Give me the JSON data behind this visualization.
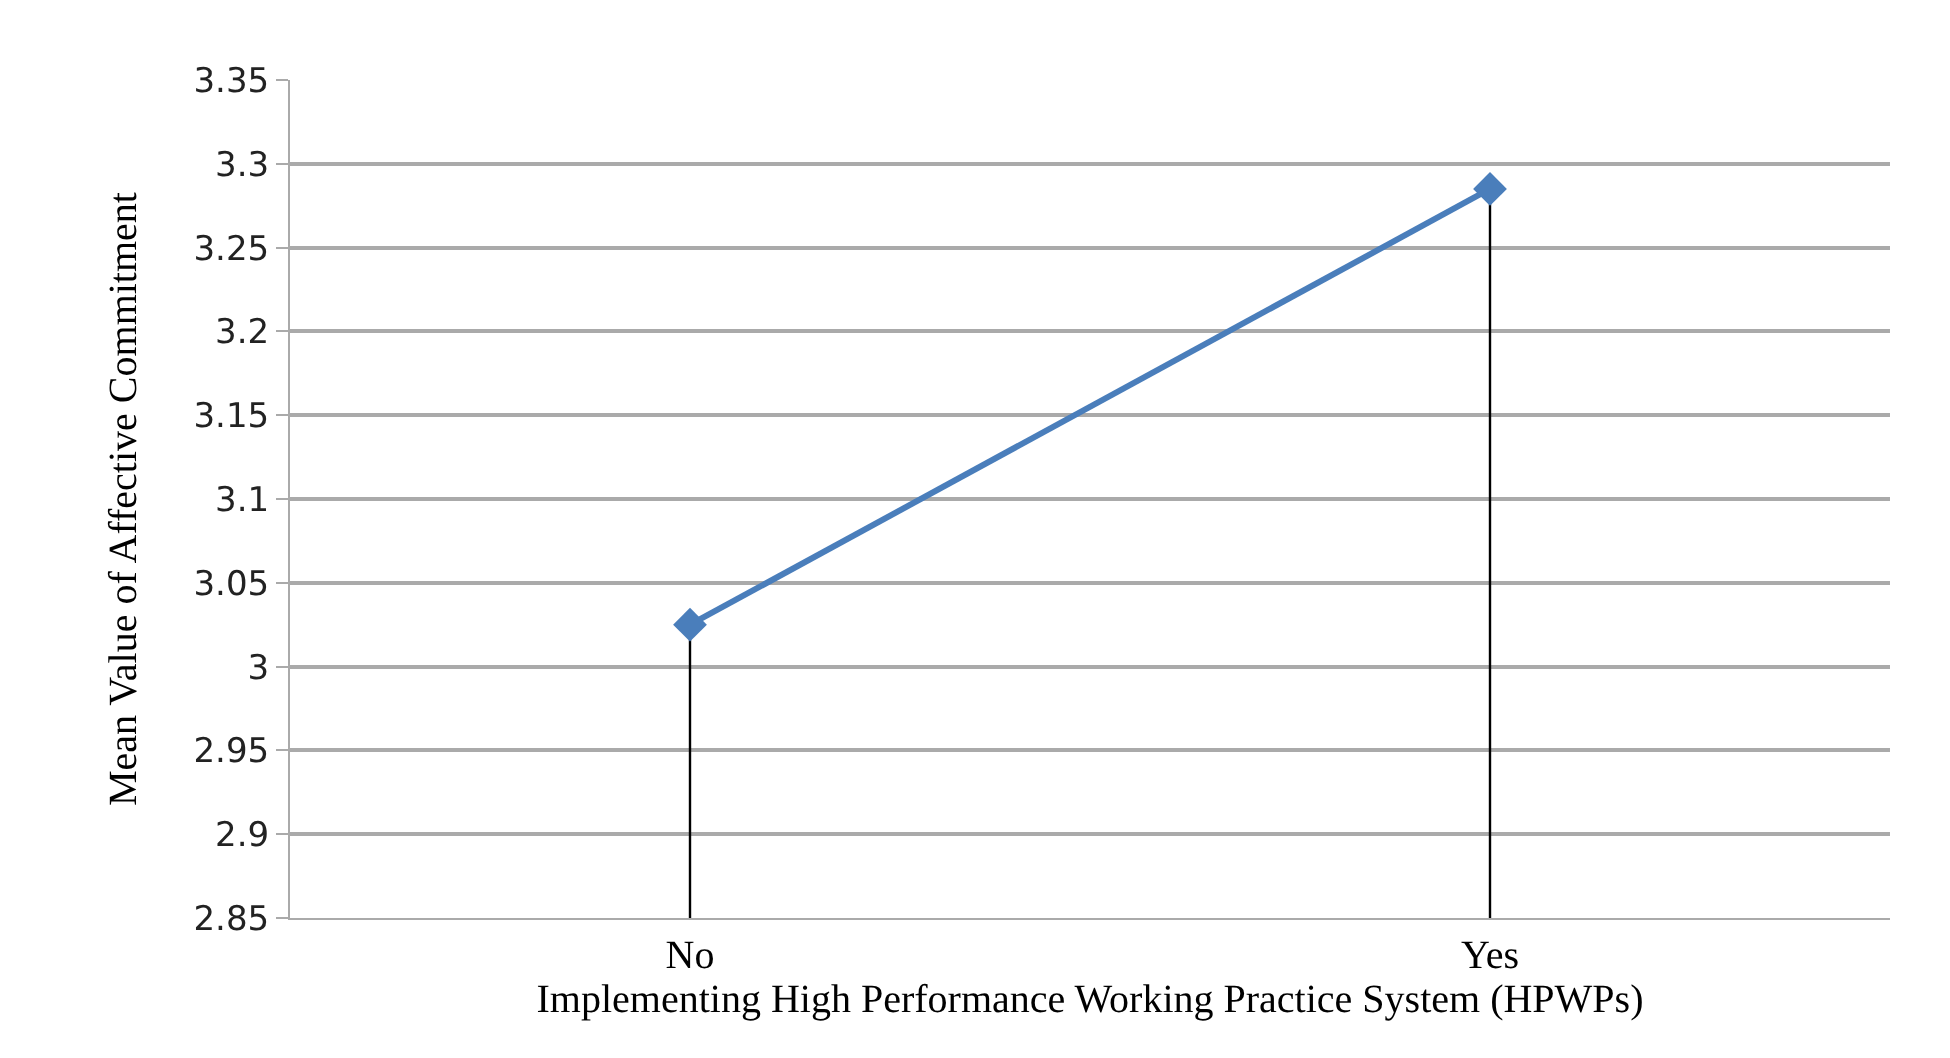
{
  "chart_data": {
    "type": "line",
    "xlabel": "Implementing High Performance Working Practice System (HPWPs)",
    "ylabel": "Mean Value of Affective Commitment",
    "categories": [
      "No",
      "Yes"
    ],
    "series": [
      {
        "color": "#4a7ebb",
        "values": [
          3.025,
          3.285
        ],
        "errors": [
          [
            2.85,
            3.025
          ],
          [
            2.85,
            3.285
          ]
        ]
      }
    ],
    "ylim": [
      2.85,
      3.35
    ],
    "yticks": [
      2.85,
      2.9,
      2.95,
      3,
      3.05,
      3.1,
      3.15,
      3.2,
      3.25,
      3.3,
      3.35
    ],
    "grid": "y",
    "legend": false,
    "marker": "diamond",
    "line_style": "solid"
  }
}
